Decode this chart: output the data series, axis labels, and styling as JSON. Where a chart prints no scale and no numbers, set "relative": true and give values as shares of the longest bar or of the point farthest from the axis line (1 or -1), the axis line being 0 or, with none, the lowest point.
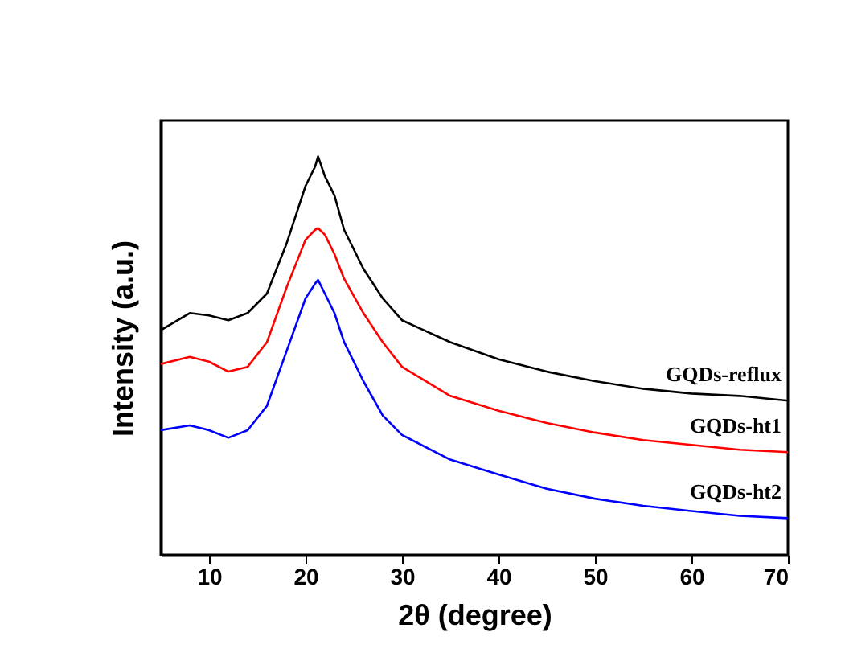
{
  "chart_data": {
    "type": "line",
    "xlabel": "2θ (degree)",
    "ylabel": "Intensity (a.u.)",
    "relative": true,
    "x": [
      5,
      8,
      10,
      12,
      14,
      16,
      18,
      20,
      21,
      21.3,
      22,
      23,
      24,
      26,
      28,
      30,
      35,
      40,
      45,
      50,
      55,
      60,
      65,
      70
    ],
    "series": [
      {
        "name": "GQDs-reflux",
        "color": "#000000",
        "values": [
          0.564,
          0.607,
          0.601,
          0.589,
          0.607,
          0.656,
          0.779,
          0.926,
          0.975,
          1.0,
          0.951,
          0.902,
          0.816,
          0.718,
          0.644,
          0.589,
          0.534,
          0.491,
          0.46,
          0.436,
          0.417,
          0.405,
          0.399,
          0.387
        ]
      },
      {
        "name": "GQDs-ht1",
        "color": "#ff0000",
        "values": [
          0.479,
          0.497,
          0.485,
          0.46,
          0.472,
          0.534,
          0.669,
          0.791,
          0.816,
          0.82,
          0.804,
          0.755,
          0.693,
          0.607,
          0.534,
          0.472,
          0.399,
          0.362,
          0.331,
          0.307,
          0.288,
          0.276,
          0.264,
          0.258
        ]
      },
      {
        "name": "GQDs-ht2",
        "color": "#0000ff",
        "values": [
          0.313,
          0.325,
          0.313,
          0.294,
          0.313,
          0.374,
          0.509,
          0.644,
          0.681,
          0.69,
          0.656,
          0.607,
          0.534,
          0.436,
          0.35,
          0.301,
          0.239,
          0.202,
          0.166,
          0.141,
          0.123,
          0.11,
          0.098,
          0.092
        ]
      }
    ],
    "xlim": [
      5,
      70
    ],
    "xticks": [
      10,
      20,
      30,
      40,
      50,
      60,
      70
    ],
    "tick_labels": "x",
    "line_style": "solid",
    "marker": "none"
  }
}
